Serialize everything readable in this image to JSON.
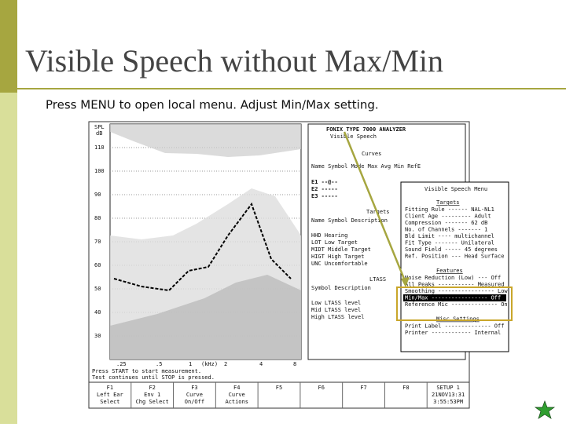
{
  "slide": {
    "title": "Visible Speech without Max/Min",
    "subtitle": "Press MENU to open local menu. Adjust Min/Max setting."
  },
  "screen": {
    "axis": {
      "unit_top": "SPL",
      "unit_bottom": "dB",
      "y_labels": [
        "110",
        "100",
        "90",
        "80",
        "70",
        "60",
        "50",
        "40",
        "30"
      ],
      "x_labels": [
        ".25",
        ".5",
        "1",
        "(kHz)",
        "2",
        "4",
        "8"
      ]
    },
    "status": [
      "Press START to start measurement.",
      "Test continues until STOP is pressed."
    ],
    "header": [
      "FONIX TYPE 7000 ANALYZER",
      "Visible Speech"
    ],
    "curves": {
      "title": "Curves",
      "columns": "Name Symbol Mode Max Avg Min RefE",
      "rows": [
        "E1  --@--",
        "E2  -----",
        "E3  -----"
      ]
    },
    "targets": {
      "title": "Targets",
      "columns": "Name Symbol Description",
      "rows": [
        "HHD  Hearing",
        "LOT  Low Target",
        "MIDT Middle Target",
        "HIGT High Target",
        "UNC  Uncomfortable"
      ]
    },
    "ltass": {
      "title": "LTASS",
      "columns": "Symbol Description",
      "rows": [
        "Low LTASS level",
        "Mid LTASS level",
        "High LTASS level"
      ]
    },
    "menu": {
      "title": "Visible Speech Menu",
      "section1": "Targets",
      "items1": [
        "Fitting Rule ------ NAL-NL1",
        "Client Age --------- Adult",
        "Compression ------- 62 dB",
        "No. of Channels ------- 1",
        "Bld Limit ---- multichannel",
        "Fit Type ------- Unilateral",
        "Sound Field ----- 45 degrees",
        "Ref. Position --- Head Surface"
      ],
      "section2": "Features",
      "items2": [
        "Noise Reduction (Low) --- Off",
        "All Peaks ----------- Measured",
        "Smoothing ----------------- Low",
        "Min/Max ----------------- Off",
        "Reference Mic -------------- On"
      ],
      "section3": "Misc Settings",
      "items3": [
        "Print Label -------------- Off",
        "Printer ------------ Internal"
      ]
    },
    "keys": [
      {
        "key": "F1",
        "lines": [
          "Left Ear",
          "Select"
        ]
      },
      {
        "key": "F2",
        "lines": [
          "Env 1",
          "Chg Select"
        ]
      },
      {
        "key": "F3",
        "lines": [
          "Curve",
          "On/Off"
        ]
      },
      {
        "key": "F4",
        "lines": [
          "Curve",
          "Actions"
        ]
      },
      {
        "key": "F5",
        "lines": []
      },
      {
        "key": "F6",
        "lines": []
      },
      {
        "key": "F7",
        "lines": []
      },
      {
        "key": "F8",
        "lines": []
      },
      {
        "key": "SETUP 1",
        "lines": [
          "21NOV13:31",
          "3:55:53PM"
        ]
      }
    ]
  }
}
